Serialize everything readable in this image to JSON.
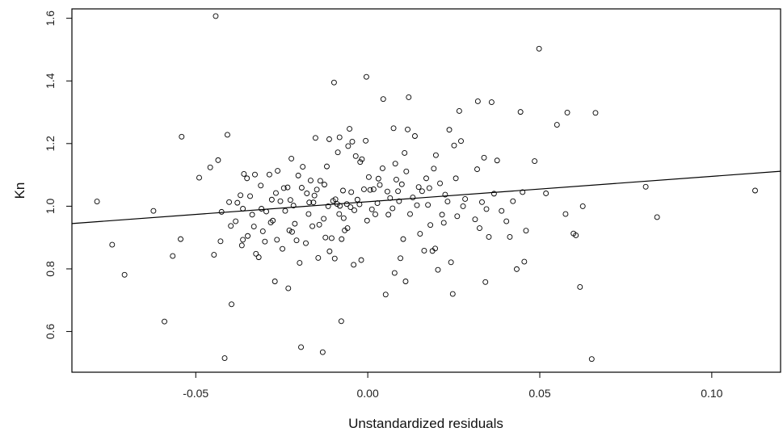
{
  "chart_data": {
    "type": "scatter",
    "title": "",
    "xlabel": "Unstandardized residuals",
    "ylabel": "Kn",
    "xlim": [
      -0.086,
      0.12
    ],
    "ylim": [
      0.47,
      1.63
    ],
    "x_ticks": [
      -0.05,
      0.0,
      0.05,
      0.1
    ],
    "x_tick_labels": [
      "-0.05",
      "0.00",
      "0.05",
      "0.10"
    ],
    "y_ticks": [
      0.6,
      0.8,
      1.0,
      1.2,
      1.4,
      1.6
    ],
    "y_tick_labels": [
      "0.6",
      "0.8",
      "1.0",
      "1.2",
      "1.4",
      "1.6"
    ],
    "grid": false,
    "legend": "none",
    "colors": {
      "points": "#000000",
      "line": "#000000",
      "axes": "#000000"
    },
    "regression_line": {
      "slope": 0.81,
      "intercept": 1.0143
    },
    "points": [
      [
        -0.0787,
        1.015
      ],
      [
        -0.0743,
        0.877
      ],
      [
        -0.0707,
        0.781
      ],
      [
        -0.0623,
        0.985
      ],
      [
        -0.0591,
        0.632
      ],
      [
        -0.0567,
        0.841
      ],
      [
        -0.0544,
        0.895
      ],
      [
        -0.0541,
        1.222
      ],
      [
        -0.049,
        1.091
      ],
      [
        -0.0458,
        1.124
      ],
      [
        -0.0447,
        0.845
      ],
      [
        -0.0442,
        1.607
      ],
      [
        -0.0435,
        1.147
      ],
      [
        -0.0428,
        0.888
      ],
      [
        -0.0425,
        0.982
      ],
      [
        -0.0416,
        0.515
      ],
      [
        -0.0408,
        1.228
      ],
      [
        -0.0403,
        1.013
      ],
      [
        -0.0398,
        0.937
      ],
      [
        -0.0396,
        0.687
      ],
      [
        -0.0384,
        0.952
      ],
      [
        -0.0379,
        1.011
      ],
      [
        -0.037,
        1.035
      ],
      [
        -0.0366,
        0.875
      ],
      [
        -0.0363,
        0.992
      ],
      [
        -0.0363,
        0.893
      ],
      [
        -0.036,
        1.103
      ],
      [
        -0.0351,
        1.089
      ],
      [
        -0.0349,
        0.905
      ],
      [
        -0.0342,
        1.032
      ],
      [
        -0.0336,
        0.973
      ],
      [
        -0.0331,
        0.935
      ],
      [
        -0.0328,
        1.101
      ],
      [
        -0.0325,
        0.848
      ],
      [
        -0.0317,
        0.837
      ],
      [
        -0.0311,
        1.066
      ],
      [
        -0.0309,
        0.992
      ],
      [
        -0.0305,
        0.92
      ],
      [
        -0.0299,
        0.887
      ],
      [
        -0.0295,
        0.983
      ],
      [
        -0.0286,
        1.101
      ],
      [
        -0.0282,
        0.948
      ],
      [
        -0.0279,
        1.021
      ],
      [
        -0.0276,
        0.954
      ],
      [
        -0.027,
        0.76
      ],
      [
        -0.0267,
        1.042
      ],
      [
        -0.0264,
        0.893
      ],
      [
        -0.0262,
        1.113
      ],
      [
        -0.0254,
        1.016
      ],
      [
        -0.0248,
        0.864
      ],
      [
        -0.0244,
        1.058
      ],
      [
        -0.024,
        0.985
      ],
      [
        -0.0233,
        1.06
      ],
      [
        -0.0231,
        0.738
      ],
      [
        -0.0228,
        0.923
      ],
      [
        -0.0225,
        1.02
      ],
      [
        -0.0222,
        1.152
      ],
      [
        -0.022,
        0.918
      ],
      [
        -0.0216,
        1.002
      ],
      [
        -0.0212,
        0.944
      ],
      [
        -0.0207,
        0.891
      ],
      [
        -0.0202,
        1.098
      ],
      [
        -0.0198,
        0.819
      ],
      [
        -0.0194,
        0.55
      ],
      [
        -0.0192,
        1.059
      ],
      [
        -0.0189,
        1.126
      ],
      [
        -0.018,
        0.882
      ],
      [
        -0.0177,
        1.041
      ],
      [
        -0.0172,
        0.975
      ],
      [
        -0.017,
        1.012
      ],
      [
        -0.0166,
        1.082
      ],
      [
        -0.0161,
        0.936
      ],
      [
        -0.0158,
        1.012
      ],
      [
        -0.0155,
        1.034
      ],
      [
        -0.0152,
        1.218
      ],
      [
        -0.0148,
        1.053
      ],
      [
        -0.0144,
        0.835
      ],
      [
        -0.0141,
        0.941
      ],
      [
        -0.0138,
        1.081
      ],
      [
        -0.0131,
        0.534
      ],
      [
        -0.0128,
        0.96
      ],
      [
        -0.0126,
        1.069
      ],
      [
        -0.0123,
        0.9
      ],
      [
        -0.0119,
        1.127
      ],
      [
        -0.0115,
        1.0
      ],
      [
        -0.0112,
        1.214
      ],
      [
        -0.0111,
        0.856
      ],
      [
        -0.0105,
        0.898
      ],
      [
        -0.0101,
        1.017
      ],
      [
        -0.0098,
        1.395
      ],
      [
        -0.0096,
        0.833
      ],
      [
        -0.0094,
        1.022
      ],
      [
        -0.0089,
        1.007
      ],
      [
        -0.0087,
        1.172
      ],
      [
        -0.0083,
        0.975
      ],
      [
        -0.0082,
        1.22
      ],
      [
        -0.0081,
        1.001
      ],
      [
        -0.0077,
        0.633
      ],
      [
        -0.0076,
        0.895
      ],
      [
        -0.0072,
        1.05
      ],
      [
        -0.007,
        0.962
      ],
      [
        -0.0067,
        0.923
      ],
      [
        -0.0061,
        1.007
      ],
      [
        -0.0059,
        0.93
      ],
      [
        -0.0057,
        1.192
      ],
      [
        -0.0053,
        1.247
      ],
      [
        -0.005,
        0.997
      ],
      [
        -0.0048,
        1.045
      ],
      [
        -0.0045,
        1.206
      ],
      [
        -0.0041,
        0.813
      ],
      [
        -0.0039,
        0.987
      ],
      [
        -0.0035,
        1.16
      ],
      [
        -0.003,
        1.021
      ],
      [
        -0.0024,
        1.006
      ],
      [
        -0.0022,
        1.141
      ],
      [
        -0.0019,
        0.828
      ],
      [
        -0.0017,
        1.15
      ],
      [
        -0.0011,
        1.054
      ],
      [
        -0.0006,
        1.209
      ],
      [
        -0.0004,
        1.413
      ],
      [
        -0.0002,
        0.954
      ],
      [
        0.0003,
        1.093
      ],
      [
        0.0007,
        1.052
      ],
      [
        0.0012,
        0.99
      ],
      [
        0.0017,
        1.054
      ],
      [
        0.0022,
        0.974
      ],
      [
        0.0028,
        1.01
      ],
      [
        0.0031,
        1.088
      ],
      [
        0.0035,
        1.068
      ],
      [
        0.0043,
        1.121
      ],
      [
        0.0045,
        1.342
      ],
      [
        0.0052,
        0.718
      ],
      [
        0.0057,
        1.047
      ],
      [
        0.006,
        0.973
      ],
      [
        0.0065,
        1.026
      ],
      [
        0.0072,
        0.993
      ],
      [
        0.0075,
        1.249
      ],
      [
        0.0078,
        0.787
      ],
      [
        0.008,
        1.136
      ],
      [
        0.0083,
        1.085
      ],
      [
        0.0088,
        1.048
      ],
      [
        0.0091,
        1.016
      ],
      [
        0.0095,
        0.834
      ],
      [
        0.0099,
        1.07
      ],
      [
        0.0103,
        0.895
      ],
      [
        0.0107,
        1.17
      ],
      [
        0.011,
        0.76
      ],
      [
        0.0112,
        1.111
      ],
      [
        0.0116,
        1.245
      ],
      [
        0.0119,
        1.348
      ],
      [
        0.0123,
        0.975
      ],
      [
        0.0131,
        1.028
      ],
      [
        0.0137,
        1.224
      ],
      [
        0.0143,
        1.003
      ],
      [
        0.0148,
        1.061
      ],
      [
        0.0152,
        0.912
      ],
      [
        0.0158,
        1.048
      ],
      [
        0.0164,
        0.858
      ],
      [
        0.017,
        1.089
      ],
      [
        0.0175,
        1.004
      ],
      [
        0.0179,
        1.058
      ],
      [
        0.0182,
        0.94
      ],
      [
        0.0188,
        0.857
      ],
      [
        0.0192,
        1.12
      ],
      [
        0.0196,
        0.865
      ],
      [
        0.0198,
        1.163
      ],
      [
        0.0204,
        0.797
      ],
      [
        0.021,
        1.073
      ],
      [
        0.0216,
        0.973
      ],
      [
        0.0221,
        0.947
      ],
      [
        0.0225,
        1.037
      ],
      [
        0.0232,
        1.015
      ],
      [
        0.0237,
        1.244
      ],
      [
        0.0242,
        0.821
      ],
      [
        0.0247,
        0.72
      ],
      [
        0.0251,
        1.194
      ],
      [
        0.0256,
        1.089
      ],
      [
        0.026,
        0.968
      ],
      [
        0.0266,
        1.304
      ],
      [
        0.0271,
        1.208
      ],
      [
        0.0277,
        1.0
      ],
      [
        0.0283,
        1.023
      ],
      [
        0.0312,
        0.958
      ],
      [
        0.0318,
        1.118
      ],
      [
        0.032,
        1.335
      ],
      [
        0.0325,
        0.93
      ],
      [
        0.0332,
        1.013
      ],
      [
        0.0338,
        1.155
      ],
      [
        0.0342,
        0.758
      ],
      [
        0.0345,
        0.991
      ],
      [
        0.0352,
        0.902
      ],
      [
        0.036,
        1.332
      ],
      [
        0.0367,
        1.04
      ],
      [
        0.0376,
        1.146
      ],
      [
        0.0389,
        0.985
      ],
      [
        0.0403,
        0.952
      ],
      [
        0.0413,
        0.902
      ],
      [
        0.0422,
        1.016
      ],
      [
        0.0433,
        0.799
      ],
      [
        0.0444,
        1.301
      ],
      [
        0.045,
        1.045
      ],
      [
        0.0455,
        0.823
      ],
      [
        0.046,
        0.922
      ],
      [
        0.0485,
        1.144
      ],
      [
        0.0498,
        1.503
      ],
      [
        0.0518,
        1.041
      ],
      [
        0.055,
        1.26
      ],
      [
        0.0575,
        0.975
      ],
      [
        0.058,
        1.299
      ],
      [
        0.0598,
        0.913
      ],
      [
        0.0605,
        0.907
      ],
      [
        0.0617,
        0.742
      ],
      [
        0.0625,
        1.0
      ],
      [
        0.0651,
        0.512
      ],
      [
        0.0662,
        1.298
      ],
      [
        0.0808,
        1.062
      ],
      [
        0.0841,
        0.965
      ],
      [
        0.1126,
        1.05
      ]
    ]
  }
}
